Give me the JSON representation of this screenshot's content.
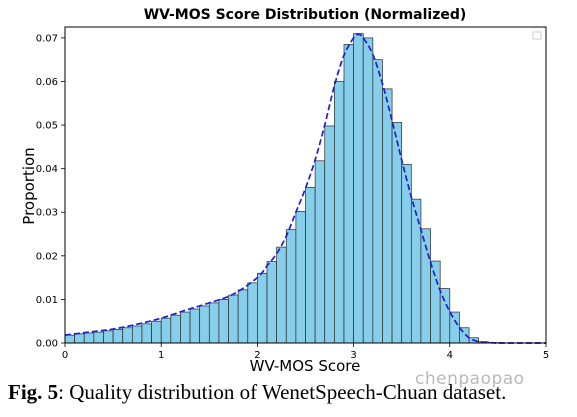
{
  "chart_data": {
    "type": "bar",
    "title": "WV-MOS Score Distribution (Normalized)",
    "xlabel": "WV-MOS Score",
    "ylabel": "Proportion",
    "xlim": [
      0,
      5
    ],
    "ylim": [
      0,
      0.0725
    ],
    "x_ticks": [
      "0",
      "1",
      "2",
      "3",
      "4",
      "5"
    ],
    "y_ticks": [
      "0.00",
      "0.01",
      "0.02",
      "0.03",
      "0.04",
      "0.05",
      "0.06",
      "0.07"
    ],
    "bin_width": 0.1,
    "bin_starts": [
      0.0,
      0.1,
      0.2,
      0.3,
      0.4,
      0.5,
      0.6,
      0.7,
      0.8,
      0.9,
      1.0,
      1.1,
      1.2,
      1.3,
      1.4,
      1.5,
      1.6,
      1.7,
      1.8,
      1.9,
      2.0,
      2.1,
      2.2,
      2.3,
      2.4,
      2.5,
      2.6,
      2.7,
      2.8,
      2.9,
      3.0,
      3.1,
      3.2,
      3.3,
      3.4,
      3.5,
      3.6,
      3.7,
      3.8,
      3.9,
      4.0,
      4.1,
      4.2,
      4.3,
      4.4,
      4.5,
      4.6,
      4.7,
      4.8,
      4.9
    ],
    "values": [
      0.0018,
      0.0021,
      0.0023,
      0.0025,
      0.0028,
      0.0031,
      0.0035,
      0.0039,
      0.0044,
      0.005,
      0.0057,
      0.0064,
      0.0071,
      0.0078,
      0.0085,
      0.0092,
      0.01,
      0.011,
      0.0122,
      0.0138,
      0.016,
      0.0187,
      0.022,
      0.026,
      0.0302,
      0.0357,
      0.0418,
      0.0498,
      0.06,
      0.0685,
      0.071,
      0.07,
      0.065,
      0.0583,
      0.0506,
      0.041,
      0.033,
      0.0262,
      0.0188,
      0.0125,
      0.0071,
      0.0035,
      0.0012,
      0.0003,
      0.0001,
      0.0,
      0.0,
      0.0,
      0.0,
      0.0
    ],
    "curve": {
      "style": "dashed",
      "color": "#1f1fcc",
      "x": [
        0.0,
        0.25,
        0.5,
        0.75,
        1.0,
        1.25,
        1.5,
        1.75,
        2.0,
        2.1,
        2.2,
        2.3,
        2.4,
        2.5,
        2.6,
        2.7,
        2.8,
        2.9,
        3.0,
        3.05,
        3.1,
        3.2,
        3.3,
        3.4,
        3.5,
        3.6,
        3.7,
        3.8,
        3.9,
        4.0,
        4.1,
        4.2,
        4.3,
        4.4,
        4.5,
        4.75,
        5.0
      ],
      "y": [
        0.0018,
        0.0025,
        0.0032,
        0.0043,
        0.0057,
        0.0075,
        0.0092,
        0.0112,
        0.015,
        0.0177,
        0.0205,
        0.0245,
        0.03,
        0.0355,
        0.042,
        0.05,
        0.059,
        0.066,
        0.07,
        0.0708,
        0.07,
        0.0662,
        0.0595,
        0.051,
        0.042,
        0.0335,
        0.026,
        0.0185,
        0.012,
        0.0072,
        0.0036,
        0.0012,
        0.0003,
        0.0001,
        0.0,
        0.0,
        0.0
      ]
    },
    "legend": "top-right",
    "grid": false,
    "colors": {
      "bar_fill": "#87ceeb",
      "bar_edge": "#2a2a2a",
      "curve": "#1f1fcc"
    }
  },
  "caption": {
    "prefix": "Fig. 5",
    "text": ": Quality distribution of WenetSpeech-Chuan dataset."
  },
  "watermark": "chenpaopao"
}
